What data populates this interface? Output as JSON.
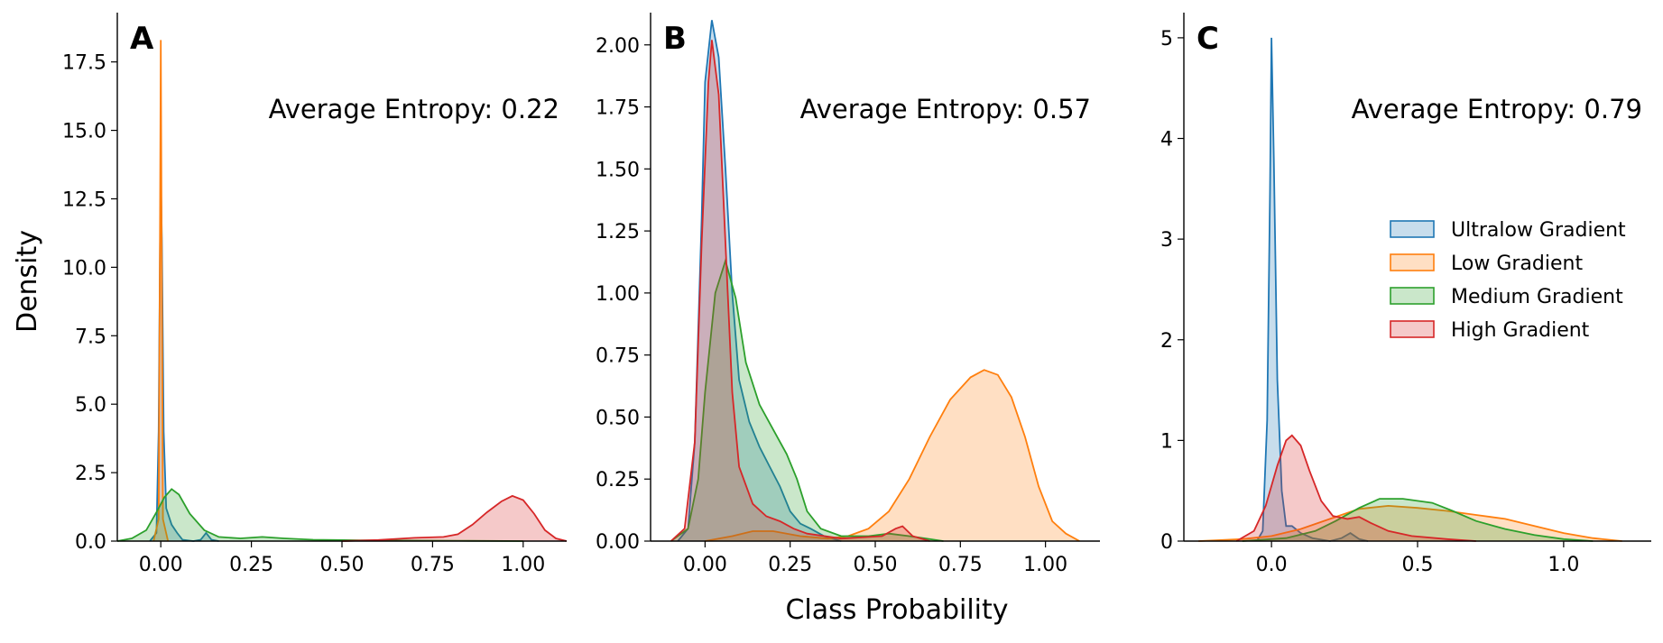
{
  "figure": {
    "ylabel": "Density",
    "xlabel": "Class Probability"
  },
  "legend": {
    "placement": "panel C, center-right",
    "items": [
      {
        "label": "Ultralow Gradient",
        "color": "#1f77b4"
      },
      {
        "label": "Low Gradient",
        "color": "#ff7f0e"
      },
      {
        "label": "Medium Gradient",
        "color": "#2ca02c"
      },
      {
        "label": "High Gradient",
        "color": "#d62728"
      }
    ]
  },
  "chart_data": [
    {
      "panel": "A",
      "type": "area",
      "annotation": "Average Entropy: 0.22",
      "xlim": [
        -0.12,
        1.12
      ],
      "ylim": [
        0,
        19.3
      ],
      "xticks": [
        0.0,
        0.25,
        0.5,
        0.75,
        1.0
      ],
      "xtick_labels": [
        "0.00",
        "0.25",
        "0.50",
        "0.75",
        "1.00"
      ],
      "yticks": [
        0,
        2.5,
        5,
        7.5,
        10,
        12.5,
        15,
        17.5
      ],
      "ytick_labels": [
        "0.0",
        "2.5",
        "5.0",
        "7.5",
        "10.0",
        "12.5",
        "15.0",
        "17.5"
      ],
      "series": [
        {
          "name": "Ultralow Gradient",
          "color": "#1f77b4",
          "points": [
            [
              -0.03,
              0
            ],
            [
              -0.012,
              0.3
            ],
            [
              -0.006,
              4
            ],
            [
              -0.002,
              11
            ],
            [
              0.0,
              13.4
            ],
            [
              0.003,
              11
            ],
            [
              0.008,
              4
            ],
            [
              0.015,
              1.2
            ],
            [
              0.03,
              0.6
            ],
            [
              0.045,
              0.3
            ],
            [
              0.06,
              0.05
            ],
            [
              0.09,
              0
            ],
            [
              0.11,
              0.05
            ],
            [
              0.125,
              0.3
            ],
            [
              0.14,
              0.05
            ],
            [
              0.16,
              0
            ]
          ]
        },
        {
          "name": "Low Gradient",
          "color": "#ff7f0e",
          "points": [
            [
              -0.02,
              0
            ],
            [
              -0.006,
              0.8
            ],
            [
              -0.002,
              12
            ],
            [
              0.0,
              18.3
            ],
            [
              0.002,
              12
            ],
            [
              0.006,
              0.8
            ],
            [
              0.02,
              0
            ]
          ]
        },
        {
          "name": "Medium Gradient",
          "color": "#2ca02c",
          "points": [
            [
              -0.12,
              0
            ],
            [
              -0.08,
              0.1
            ],
            [
              -0.04,
              0.4
            ],
            [
              -0.01,
              1.1
            ],
            [
              0.01,
              1.6
            ],
            [
              0.03,
              1.9
            ],
            [
              0.05,
              1.7
            ],
            [
              0.08,
              1.0
            ],
            [
              0.12,
              0.4
            ],
            [
              0.16,
              0.15
            ],
            [
              0.22,
              0.1
            ],
            [
              0.28,
              0.15
            ],
            [
              0.34,
              0.1
            ],
            [
              0.42,
              0.05
            ],
            [
              0.55,
              0.03
            ],
            [
              0.7,
              0.02
            ],
            [
              0.85,
              0.01
            ],
            [
              1.0,
              0
            ]
          ]
        },
        {
          "name": "High Gradient",
          "color": "#d62728",
          "points": [
            [
              0.5,
              0
            ],
            [
              0.6,
              0.04
            ],
            [
              0.7,
              0.12
            ],
            [
              0.78,
              0.15
            ],
            [
              0.82,
              0.25
            ],
            [
              0.86,
              0.6
            ],
            [
              0.9,
              1.05
            ],
            [
              0.94,
              1.45
            ],
            [
              0.97,
              1.65
            ],
            [
              1.0,
              1.5
            ],
            [
              1.03,
              1.0
            ],
            [
              1.06,
              0.4
            ],
            [
              1.09,
              0.1
            ],
            [
              1.12,
              0
            ]
          ]
        }
      ]
    },
    {
      "panel": "B",
      "type": "area",
      "annotation": "Average Entropy: 0.57",
      "xlim": [
        -0.16,
        1.16
      ],
      "ylim": [
        0,
        2.13
      ],
      "xticks": [
        0.0,
        0.25,
        0.5,
        0.75,
        1.0
      ],
      "xtick_labels": [
        "0.00",
        "0.25",
        "0.50",
        "0.75",
        "1.00"
      ],
      "yticks": [
        0,
        0.25,
        0.5,
        0.75,
        1.0,
        1.25,
        1.5,
        1.75,
        2.0
      ],
      "ytick_labels": [
        "0.00",
        "0.25",
        "0.50",
        "0.75",
        "1.00",
        "1.25",
        "1.50",
        "1.75",
        "2.00"
      ],
      "series": [
        {
          "name": "Ultralow Gradient",
          "color": "#1f77b4",
          "points": [
            [
              -0.08,
              0
            ],
            [
              -0.05,
              0.05
            ],
            [
              -0.03,
              0.4
            ],
            [
              -0.01,
              1.3
            ],
            [
              0.0,
              1.85
            ],
            [
              0.02,
              2.1
            ],
            [
              0.04,
              1.95
            ],
            [
              0.06,
              1.5
            ],
            [
              0.08,
              1.0
            ],
            [
              0.1,
              0.65
            ],
            [
              0.13,
              0.48
            ],
            [
              0.16,
              0.38
            ],
            [
              0.19,
              0.3
            ],
            [
              0.22,
              0.22
            ],
            [
              0.25,
              0.12
            ],
            [
              0.28,
              0.07
            ],
            [
              0.31,
              0.05
            ],
            [
              0.35,
              0.02
            ],
            [
              0.4,
              0
            ]
          ]
        },
        {
          "name": "Low Gradient",
          "color": "#ff7f0e",
          "points": [
            [
              0.0,
              0
            ],
            [
              0.08,
              0.02
            ],
            [
              0.14,
              0.04
            ],
            [
              0.2,
              0.04
            ],
            [
              0.28,
              0.02
            ],
            [
              0.36,
              0.01
            ],
            [
              0.42,
              0.02
            ],
            [
              0.48,
              0.05
            ],
            [
              0.54,
              0.12
            ],
            [
              0.6,
              0.25
            ],
            [
              0.66,
              0.42
            ],
            [
              0.72,
              0.57
            ],
            [
              0.78,
              0.66
            ],
            [
              0.82,
              0.69
            ],
            [
              0.86,
              0.67
            ],
            [
              0.9,
              0.58
            ],
            [
              0.94,
              0.42
            ],
            [
              0.98,
              0.22
            ],
            [
              1.02,
              0.08
            ],
            [
              1.06,
              0.03
            ],
            [
              1.1,
              0
            ]
          ]
        },
        {
          "name": "Medium Gradient",
          "color": "#2ca02c",
          "points": [
            [
              -0.1,
              0
            ],
            [
              -0.05,
              0.05
            ],
            [
              -0.02,
              0.25
            ],
            [
              0.0,
              0.6
            ],
            [
              0.03,
              1.0
            ],
            [
              0.06,
              1.13
            ],
            [
              0.09,
              0.98
            ],
            [
              0.12,
              0.72
            ],
            [
              0.16,
              0.55
            ],
            [
              0.2,
              0.45
            ],
            [
              0.24,
              0.35
            ],
            [
              0.27,
              0.25
            ],
            [
              0.3,
              0.12
            ],
            [
              0.34,
              0.05
            ],
            [
              0.4,
              0.02
            ],
            [
              0.48,
              0.02
            ],
            [
              0.54,
              0.03
            ],
            [
              0.6,
              0.02
            ],
            [
              0.7,
              0
            ]
          ]
        },
        {
          "name": "High Gradient",
          "color": "#d62728",
          "points": [
            [
              -0.1,
              0
            ],
            [
              -0.06,
              0.05
            ],
            [
              -0.03,
              0.4
            ],
            [
              -0.01,
              1.2
            ],
            [
              0.01,
              1.85
            ],
            [
              0.02,
              2.02
            ],
            [
              0.04,
              1.8
            ],
            [
              0.06,
              1.2
            ],
            [
              0.08,
              0.6
            ],
            [
              0.1,
              0.3
            ],
            [
              0.14,
              0.15
            ],
            [
              0.18,
              0.1
            ],
            [
              0.22,
              0.08
            ],
            [
              0.26,
              0.05
            ],
            [
              0.3,
              0.03
            ],
            [
              0.4,
              0.01
            ],
            [
              0.52,
              0.02
            ],
            [
              0.56,
              0.05
            ],
            [
              0.58,
              0.06
            ],
            [
              0.61,
              0.02
            ],
            [
              0.66,
              0
            ]
          ]
        }
      ]
    },
    {
      "panel": "C",
      "type": "area",
      "annotation": "Average Entropy: 0.79",
      "xlim": [
        -0.3,
        1.3
      ],
      "ylim": [
        0,
        5.25
      ],
      "xticks": [
        0.0,
        0.5,
        1.0
      ],
      "xtick_labels": [
        "0.0",
        "0.5",
        "1.0"
      ],
      "yticks": [
        0,
        1,
        2,
        3,
        4,
        5
      ],
      "ytick_labels": [
        "0",
        "1",
        "2",
        "3",
        "4",
        "5"
      ],
      "series": [
        {
          "name": "Ultralow Gradient",
          "color": "#1f77b4",
          "points": [
            [
              -0.05,
              0
            ],
            [
              -0.03,
              0.1
            ],
            [
              -0.015,
              1.2
            ],
            [
              -0.005,
              3.5
            ],
            [
              0.0,
              5.0
            ],
            [
              0.008,
              3.8
            ],
            [
              0.02,
              1.6
            ],
            [
              0.035,
              0.5
            ],
            [
              0.05,
              0.15
            ],
            [
              0.07,
              0.15
            ],
            [
              0.1,
              0.08
            ],
            [
              0.14,
              0.03
            ],
            [
              0.2,
              0
            ],
            [
              0.24,
              0.03
            ],
            [
              0.27,
              0.08
            ],
            [
              0.3,
              0.02
            ],
            [
              0.33,
              0
            ]
          ]
        },
        {
          "name": "Low Gradient",
          "color": "#ff7f0e",
          "points": [
            [
              -0.25,
              0
            ],
            [
              -0.1,
              0.02
            ],
            [
              0.0,
              0.05
            ],
            [
              0.1,
              0.12
            ],
            [
              0.2,
              0.22
            ],
            [
              0.3,
              0.32
            ],
            [
              0.4,
              0.35
            ],
            [
              0.5,
              0.33
            ],
            [
              0.6,
              0.3
            ],
            [
              0.7,
              0.26
            ],
            [
              0.8,
              0.22
            ],
            [
              0.9,
              0.15
            ],
            [
              1.0,
              0.08
            ],
            [
              1.1,
              0.03
            ],
            [
              1.2,
              0
            ]
          ]
        },
        {
          "name": "Medium Gradient",
          "color": "#2ca02c",
          "points": [
            [
              -0.1,
              0
            ],
            [
              0.05,
              0.03
            ],
            [
              0.15,
              0.1
            ],
            [
              0.22,
              0.2
            ],
            [
              0.3,
              0.33
            ],
            [
              0.37,
              0.42
            ],
            [
              0.45,
              0.42
            ],
            [
              0.55,
              0.38
            ],
            [
              0.62,
              0.3
            ],
            [
              0.7,
              0.2
            ],
            [
              0.8,
              0.12
            ],
            [
              0.9,
              0.06
            ],
            [
              1.0,
              0.02
            ],
            [
              1.1,
              0
            ]
          ]
        },
        {
          "name": "High Gradient",
          "color": "#d62728",
          "points": [
            [
              -0.12,
              0
            ],
            [
              -0.06,
              0.1
            ],
            [
              -0.02,
              0.35
            ],
            [
              0.02,
              0.75
            ],
            [
              0.05,
              1.0
            ],
            [
              0.07,
              1.05
            ],
            [
              0.1,
              0.95
            ],
            [
              0.13,
              0.7
            ],
            [
              0.17,
              0.4
            ],
            [
              0.21,
              0.25
            ],
            [
              0.26,
              0.22
            ],
            [
              0.3,
              0.24
            ],
            [
              0.34,
              0.18
            ],
            [
              0.4,
              0.1
            ],
            [
              0.48,
              0.05
            ],
            [
              0.6,
              0.02
            ],
            [
              0.7,
              0
            ]
          ]
        }
      ]
    }
  ]
}
